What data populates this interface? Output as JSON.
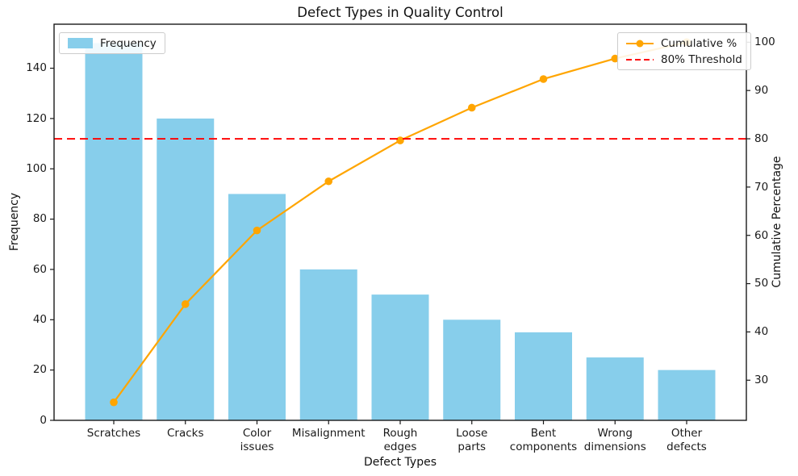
{
  "chart_data": {
    "type": "bar",
    "subtype": "pareto (bars + cumulative line + threshold)",
    "title": "Defect Types in Quality Control",
    "xlabel": "Defect Types",
    "ylabel_left": "Frequency",
    "ylabel_right": "Cumulative Percentage",
    "categories": [
      "Scratches",
      "Cracks",
      "Color issues",
      "Misalignment",
      "Rough edges",
      "Loose parts",
      "Bent components",
      "Wrong dimensions",
      "Other defects"
    ],
    "tick_labels": [
      "Scratches",
      "Cracks",
      "Color\nissues",
      "Misalignment",
      "Rough\nedges",
      "Loose\nparts",
      "Bent\ncomponents",
      "Wrong\ndimensions",
      "Other\ndefects"
    ],
    "series": [
      {
        "name": "Frequency",
        "kind": "bar",
        "axis": "left",
        "color": "#87CEEB",
        "values": [
          150,
          120,
          90,
          60,
          50,
          40,
          35,
          25,
          20
        ]
      },
      {
        "name": "Cumulative %",
        "kind": "line",
        "axis": "right",
        "color": "#FFA500",
        "marker": "circle",
        "values": [
          25.42,
          45.76,
          61.02,
          71.19,
          79.66,
          86.44,
          92.37,
          96.61,
          100.0
        ]
      },
      {
        "name": "80% Threshold",
        "kind": "hline",
        "axis": "right",
        "color": "#FF0000",
        "style": "dashed",
        "value": 80
      }
    ],
    "axes": {
      "left_ticks": [
        0,
        20,
        40,
        60,
        80,
        100,
        120,
        140
      ],
      "left_min": 0,
      "left_max": 157.5,
      "right_ticks": [
        30,
        40,
        50,
        60,
        70,
        80,
        90,
        100
      ],
      "right_min": 21.69,
      "right_max": 103.73,
      "grid": false
    },
    "legend_left": [
      "Frequency"
    ],
    "legend_right": [
      "Cumulative %",
      "80% Threshold"
    ]
  }
}
